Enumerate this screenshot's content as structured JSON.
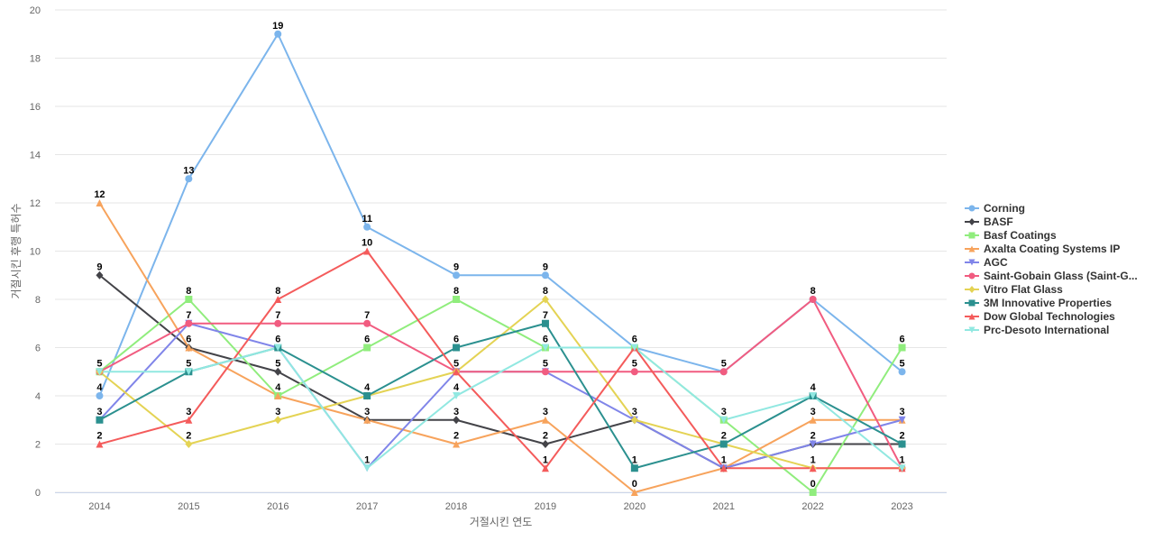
{
  "chart_data": {
    "type": "line",
    "title": "",
    "xlabel": "거절시킨 연도",
    "ylabel": "거절시킨 후행 특허수",
    "ylim": [
      0,
      20
    ],
    "yticks": [
      0,
      2,
      4,
      6,
      8,
      10,
      12,
      14,
      16,
      18,
      20
    ],
    "grid": true,
    "legend_position": "right",
    "categories": [
      "2014",
      "2015",
      "2016",
      "2017",
      "2018",
      "2019",
      "2020",
      "2021",
      "2022",
      "2023"
    ],
    "series": [
      {
        "name": "Corning",
        "color": "#7cb5ec",
        "marker": "circle",
        "values": [
          4,
          13,
          19,
          11,
          9,
          9,
          6,
          5,
          8,
          5
        ]
      },
      {
        "name": "BASF",
        "color": "#434348",
        "marker": "diamond",
        "values": [
          9,
          6,
          5,
          3,
          3,
          2,
          3,
          1,
          2,
          2
        ]
      },
      {
        "name": "Basf Coatings",
        "color": "#90ed7d",
        "marker": "square",
        "values": [
          5,
          8,
          4,
          6,
          8,
          6,
          6,
          3,
          0,
          6
        ]
      },
      {
        "name": "Axalta Coating Systems IP",
        "color": "#f7a35c",
        "marker": "triangle",
        "values": [
          12,
          6,
          4,
          3,
          2,
          3,
          0,
          1,
          3,
          3
        ]
      },
      {
        "name": "AGC",
        "color": "#8085e9",
        "marker": "triangle-down",
        "values": [
          3,
          7,
          6,
          1,
          5,
          5,
          3,
          1,
          2,
          3
        ]
      },
      {
        "name": "Saint-Gobain Glass (Saint-G...",
        "color": "#f15c80",
        "marker": "circle",
        "values": [
          5,
          7,
          7,
          7,
          5,
          5,
          5,
          5,
          8,
          1
        ]
      },
      {
        "name": "Vitro Flat Glass",
        "color": "#e4d354",
        "marker": "diamond",
        "values": [
          5,
          2,
          3,
          4,
          5,
          8,
          3,
          2,
          1,
          1
        ]
      },
      {
        "name": "3M Innovative Properties",
        "color": "#2b908f",
        "marker": "square",
        "values": [
          3,
          5,
          6,
          4,
          6,
          7,
          1,
          2,
          4,
          2
        ]
      },
      {
        "name": "Dow Global Technologies",
        "color": "#f45b5b",
        "marker": "triangle",
        "values": [
          2,
          3,
          8,
          10,
          5,
          1,
          6,
          1,
          1,
          1
        ]
      },
      {
        "name": "Prc-Desoto International",
        "color": "#91e8e1",
        "marker": "triangle-down",
        "values": [
          5,
          5,
          6,
          1,
          4,
          6,
          6,
          3,
          4,
          1
        ]
      }
    ],
    "data_labels": [
      {
        "x": "2014",
        "text": "12",
        "value": 12
      },
      {
        "x": "2014",
        "text": "9",
        "value": 9
      },
      {
        "x": "2014",
        "text": "5",
        "value": 5
      },
      {
        "x": "2014",
        "text": "4",
        "value": 4
      },
      {
        "x": "2014",
        "text": "3",
        "value": 3
      },
      {
        "x": "2014",
        "text": "2",
        "value": 2
      },
      {
        "x": "2015",
        "text": "13",
        "value": 13
      },
      {
        "x": "2015",
        "text": "8",
        "value": 8
      },
      {
        "x": "2015",
        "text": "7",
        "value": 7
      },
      {
        "x": "2015",
        "text": "6",
        "value": 6
      },
      {
        "x": "2015",
        "text": "5",
        "value": 5
      },
      {
        "x": "2015",
        "text": "3",
        "value": 3
      },
      {
        "x": "2015",
        "text": "2",
        "value": 2
      },
      {
        "x": "2016",
        "text": "19",
        "value": 19
      },
      {
        "x": "2016",
        "text": "8",
        "value": 8
      },
      {
        "x": "2016",
        "text": "7",
        "value": 7
      },
      {
        "x": "2016",
        "text": "6",
        "value": 6
      },
      {
        "x": "2016",
        "text": "5",
        "value": 5
      },
      {
        "x": "2016",
        "text": "4",
        "value": 4
      },
      {
        "x": "2016",
        "text": "3",
        "value": 3
      },
      {
        "x": "2017",
        "text": "11",
        "value": 11
      },
      {
        "x": "2017",
        "text": "10",
        "value": 10
      },
      {
        "x": "2017",
        "text": "7",
        "value": 7
      },
      {
        "x": "2017",
        "text": "6",
        "value": 6
      },
      {
        "x": "2017",
        "text": "4",
        "value": 4
      },
      {
        "x": "2017",
        "text": "3",
        "value": 3
      },
      {
        "x": "2017",
        "text": "1",
        "value": 1
      },
      {
        "x": "2018",
        "text": "9",
        "value": 9
      },
      {
        "x": "2018",
        "text": "8",
        "value": 8
      },
      {
        "x": "2018",
        "text": "6",
        "value": 6
      },
      {
        "x": "2018",
        "text": "5",
        "value": 5
      },
      {
        "x": "2018",
        "text": "4",
        "value": 4
      },
      {
        "x": "2018",
        "text": "3",
        "value": 3
      },
      {
        "x": "2018",
        "text": "2",
        "value": 2
      },
      {
        "x": "2019",
        "text": "9",
        "value": 9
      },
      {
        "x": "2019",
        "text": "8",
        "value": 8
      },
      {
        "x": "2019",
        "text": "7",
        "value": 7
      },
      {
        "x": "2019",
        "text": "6",
        "value": 6
      },
      {
        "x": "2019",
        "text": "5",
        "value": 5
      },
      {
        "x": "2019",
        "text": "3",
        "value": 3
      },
      {
        "x": "2019",
        "text": "2",
        "value": 2
      },
      {
        "x": "2019",
        "text": "1",
        "value": 1
      },
      {
        "x": "2020",
        "text": "6",
        "value": 6
      },
      {
        "x": "2020",
        "text": "5",
        "value": 5
      },
      {
        "x": "2020",
        "text": "3",
        "value": 3
      },
      {
        "x": "2020",
        "text": "1",
        "value": 1
      },
      {
        "x": "2020",
        "text": "0",
        "value": 0
      },
      {
        "x": "2021",
        "text": "5",
        "value": 5
      },
      {
        "x": "2021",
        "text": "3",
        "value": 3
      },
      {
        "x": "2021",
        "text": "2",
        "value": 2
      },
      {
        "x": "2021",
        "text": "1",
        "value": 1
      },
      {
        "x": "2022",
        "text": "8",
        "value": 8
      },
      {
        "x": "2022",
        "text": "4",
        "value": 4
      },
      {
        "x": "2022",
        "text": "3",
        "value": 3
      },
      {
        "x": "2022",
        "text": "2",
        "value": 2
      },
      {
        "x": "2022",
        "text": "1",
        "value": 1
      },
      {
        "x": "2022",
        "text": "0",
        "value": 0
      },
      {
        "x": "2023",
        "text": "6",
        "value": 6
      },
      {
        "x": "2023",
        "text": "5",
        "value": 5
      },
      {
        "x": "2023",
        "text": "3",
        "value": 3
      },
      {
        "x": "2023",
        "text": "2",
        "value": 2
      },
      {
        "x": "2023",
        "text": "1",
        "value": 1
      }
    ]
  }
}
